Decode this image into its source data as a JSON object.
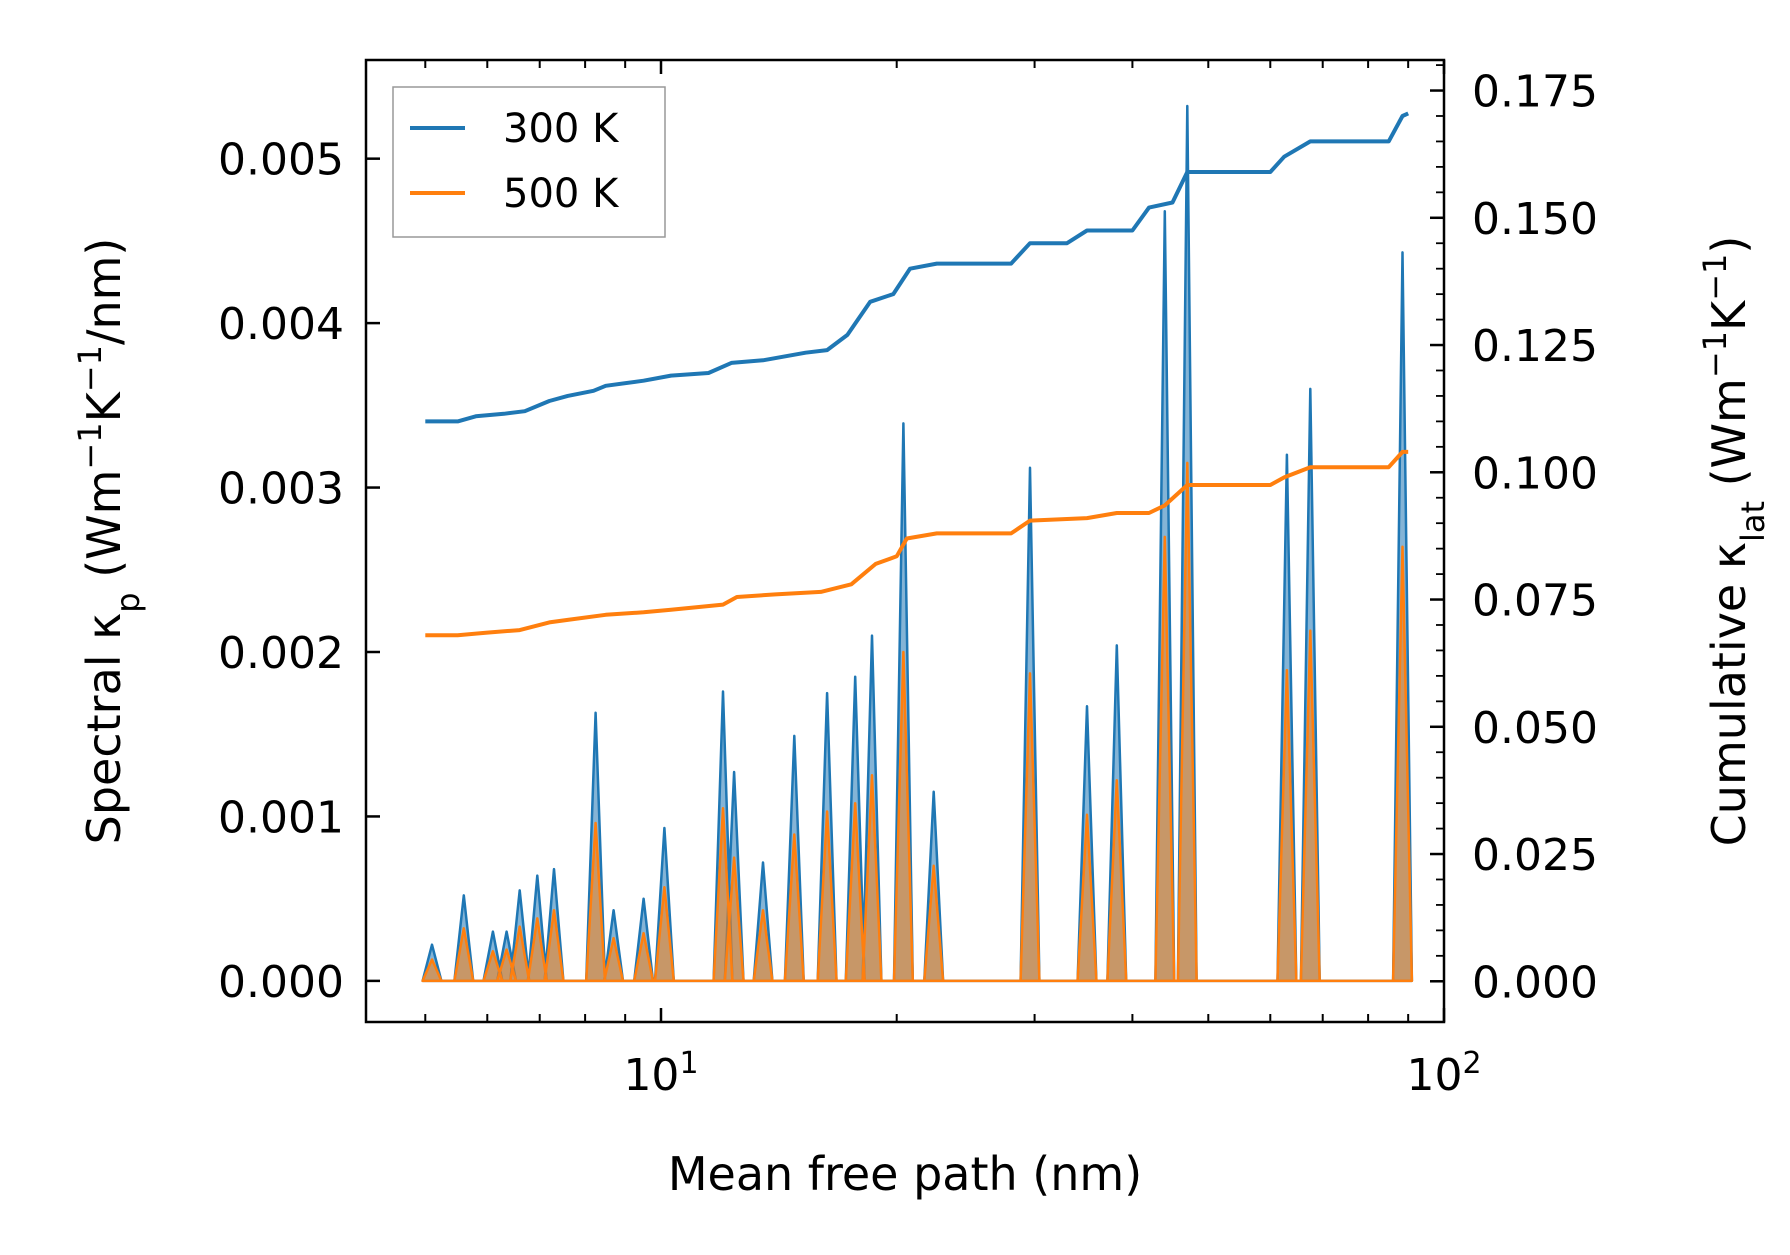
{
  "chart_data": {
    "type": "line",
    "xscale": "log",
    "xlabel": "Mean free path (nm)",
    "ylabel_left": {
      "pre": "Spectral κ",
      "sub": "p",
      "post_open": " (Wm",
      "sup1": "−1",
      "mid": "K",
      "sup2": "−1",
      "post": "/nm)"
    },
    "ylabel_right": {
      "pre": "Cumulative κ",
      "sub": "lat",
      "post_open": " (Wm",
      "sup1": "−1",
      "mid": "K",
      "sup2": "−1",
      "post": ")"
    },
    "xlim": [
      4.2,
      100
    ],
    "ylim_left": [
      -0.00025,
      0.0056
    ],
    "ylim_right": [
      -0.008,
      0.181
    ],
    "x_ticks": [
      {
        "value": 10,
        "base": "10",
        "exp": "1"
      },
      {
        "value": 100,
        "base": "10",
        "exp": "2"
      }
    ],
    "y_left_ticks": [
      {
        "value": 0.0,
        "label": "0.000"
      },
      {
        "value": 0.001,
        "label": "0.001"
      },
      {
        "value": 0.002,
        "label": "0.002"
      },
      {
        "value": 0.003,
        "label": "0.003"
      },
      {
        "value": 0.004,
        "label": "0.004"
      },
      {
        "value": 0.005,
        "label": "0.005"
      }
    ],
    "y_right_ticks": [
      {
        "value": 0.0,
        "label": "0.000"
      },
      {
        "value": 0.025,
        "label": "0.025"
      },
      {
        "value": 0.05,
        "label": "0.050"
      },
      {
        "value": 0.075,
        "label": "0.075"
      },
      {
        "value": 0.1,
        "label": "0.100"
      },
      {
        "value": 0.125,
        "label": "0.125"
      },
      {
        "value": 0.15,
        "label": "0.150"
      },
      {
        "value": 0.175,
        "label": "0.175"
      }
    ],
    "legend": {
      "location": "upper-left",
      "entries": [
        "300 K",
        "500 K"
      ]
    },
    "series": [
      {
        "name": "300 K",
        "color": "#1f77b4",
        "spectral_axis": "left",
        "spectral_peaks": [
          [
            5.1,
            0.00022
          ],
          [
            5.6,
            0.00052
          ],
          [
            6.1,
            0.0003
          ],
          [
            6.35,
            0.0003
          ],
          [
            6.6,
            0.00055
          ],
          [
            6.95,
            0.00064
          ],
          [
            7.3,
            0.00068
          ],
          [
            8.25,
            0.00163
          ],
          [
            8.7,
            0.00043
          ],
          [
            9.5,
            0.0005
          ],
          [
            10.1,
            0.00093
          ],
          [
            12.0,
            0.00176
          ],
          [
            12.4,
            0.00127
          ],
          [
            13.5,
            0.00072
          ],
          [
            14.8,
            0.00149
          ],
          [
            16.3,
            0.00175
          ],
          [
            17.7,
            0.00185
          ],
          [
            18.6,
            0.0021
          ],
          [
            20.4,
            0.00339
          ],
          [
            22.3,
            0.00115
          ],
          [
            29.6,
            0.00312
          ],
          [
            35.0,
            0.00167
          ],
          [
            38.2,
            0.00204
          ],
          [
            44.0,
            0.00468
          ],
          [
            47.0,
            0.00532
          ],
          [
            63.0,
            0.0032
          ],
          [
            67.5,
            0.0036
          ],
          [
            88.5,
            0.00443
          ]
        ],
        "cumulative_axis": "right",
        "cumulative": [
          [
            5.0,
            0.11
          ],
          [
            5.5,
            0.11
          ],
          [
            5.8,
            0.111
          ],
          [
            6.3,
            0.1115
          ],
          [
            6.7,
            0.112
          ],
          [
            7.2,
            0.114
          ],
          [
            7.6,
            0.115
          ],
          [
            8.2,
            0.116
          ],
          [
            8.5,
            0.117
          ],
          [
            9.5,
            0.118
          ],
          [
            10.3,
            0.119
          ],
          [
            11.5,
            0.1195
          ],
          [
            12.3,
            0.1215
          ],
          [
            13.5,
            0.122
          ],
          [
            15.3,
            0.1235
          ],
          [
            16.3,
            0.124
          ],
          [
            17.3,
            0.127
          ],
          [
            18.5,
            0.1335
          ],
          [
            19.8,
            0.135
          ],
          [
            20.8,
            0.14
          ],
          [
            22.5,
            0.141
          ],
          [
            28.0,
            0.141
          ],
          [
            29.6,
            0.145
          ],
          [
            33.0,
            0.145
          ],
          [
            35.0,
            0.1475
          ],
          [
            40.0,
            0.1475
          ],
          [
            42.0,
            0.152
          ],
          [
            45.0,
            0.153
          ],
          [
            47.0,
            0.159
          ],
          [
            60.0,
            0.159
          ],
          [
            62.5,
            0.162
          ],
          [
            67.5,
            0.165
          ],
          [
            85.0,
            0.165
          ],
          [
            88.5,
            0.17
          ],
          [
            90.0,
            0.1705
          ]
        ]
      },
      {
        "name": "500 K",
        "color": "#ff7f0e",
        "spectral_axis": "left",
        "spectral_peaks": [
          [
            5.1,
            0.00013
          ],
          [
            5.6,
            0.00032
          ],
          [
            6.1,
            0.00018
          ],
          [
            6.35,
            0.00019
          ],
          [
            6.6,
            0.00033
          ],
          [
            6.95,
            0.00038
          ],
          [
            7.3,
            0.00043
          ],
          [
            8.25,
            0.00096
          ],
          [
            8.7,
            0.00026
          ],
          [
            9.5,
            0.00029
          ],
          [
            10.1,
            0.00057
          ],
          [
            12.0,
            0.00105
          ],
          [
            12.4,
            0.00075
          ],
          [
            13.5,
            0.00043
          ],
          [
            14.8,
            0.00089
          ],
          [
            16.3,
            0.00103
          ],
          [
            17.7,
            0.00108
          ],
          [
            18.6,
            0.00125
          ],
          [
            20.4,
            0.002
          ],
          [
            22.3,
            0.0007
          ],
          [
            29.6,
            0.00187
          ],
          [
            35.0,
            0.00101
          ],
          [
            38.2,
            0.00122
          ],
          [
            44.0,
            0.0027
          ],
          [
            47.0,
            0.00315
          ],
          [
            63.0,
            0.00189
          ],
          [
            67.5,
            0.00213
          ],
          [
            88.5,
            0.00264
          ]
        ],
        "cumulative_axis": "right",
        "cumulative": [
          [
            5.0,
            0.068
          ],
          [
            5.5,
            0.068
          ],
          [
            6.0,
            0.0685
          ],
          [
            6.6,
            0.069
          ],
          [
            7.2,
            0.0705
          ],
          [
            7.6,
            0.071
          ],
          [
            8.5,
            0.072
          ],
          [
            9.5,
            0.0725
          ],
          [
            10.3,
            0.073
          ],
          [
            12.0,
            0.074
          ],
          [
            12.5,
            0.0755
          ],
          [
            14.0,
            0.076
          ],
          [
            16.0,
            0.0765
          ],
          [
            17.5,
            0.078
          ],
          [
            18.8,
            0.082
          ],
          [
            20.0,
            0.0835
          ],
          [
            20.6,
            0.087
          ],
          [
            22.5,
            0.088
          ],
          [
            28.0,
            0.088
          ],
          [
            29.6,
            0.0905
          ],
          [
            35.0,
            0.091
          ],
          [
            38.2,
            0.092
          ],
          [
            42.0,
            0.092
          ],
          [
            44.0,
            0.0935
          ],
          [
            47.0,
            0.0975
          ],
          [
            60.0,
            0.0975
          ],
          [
            62.5,
            0.099
          ],
          [
            67.5,
            0.101
          ],
          [
            85.0,
            0.101
          ],
          [
            88.5,
            0.104
          ],
          [
            90.0,
            0.104
          ]
        ]
      }
    ]
  }
}
